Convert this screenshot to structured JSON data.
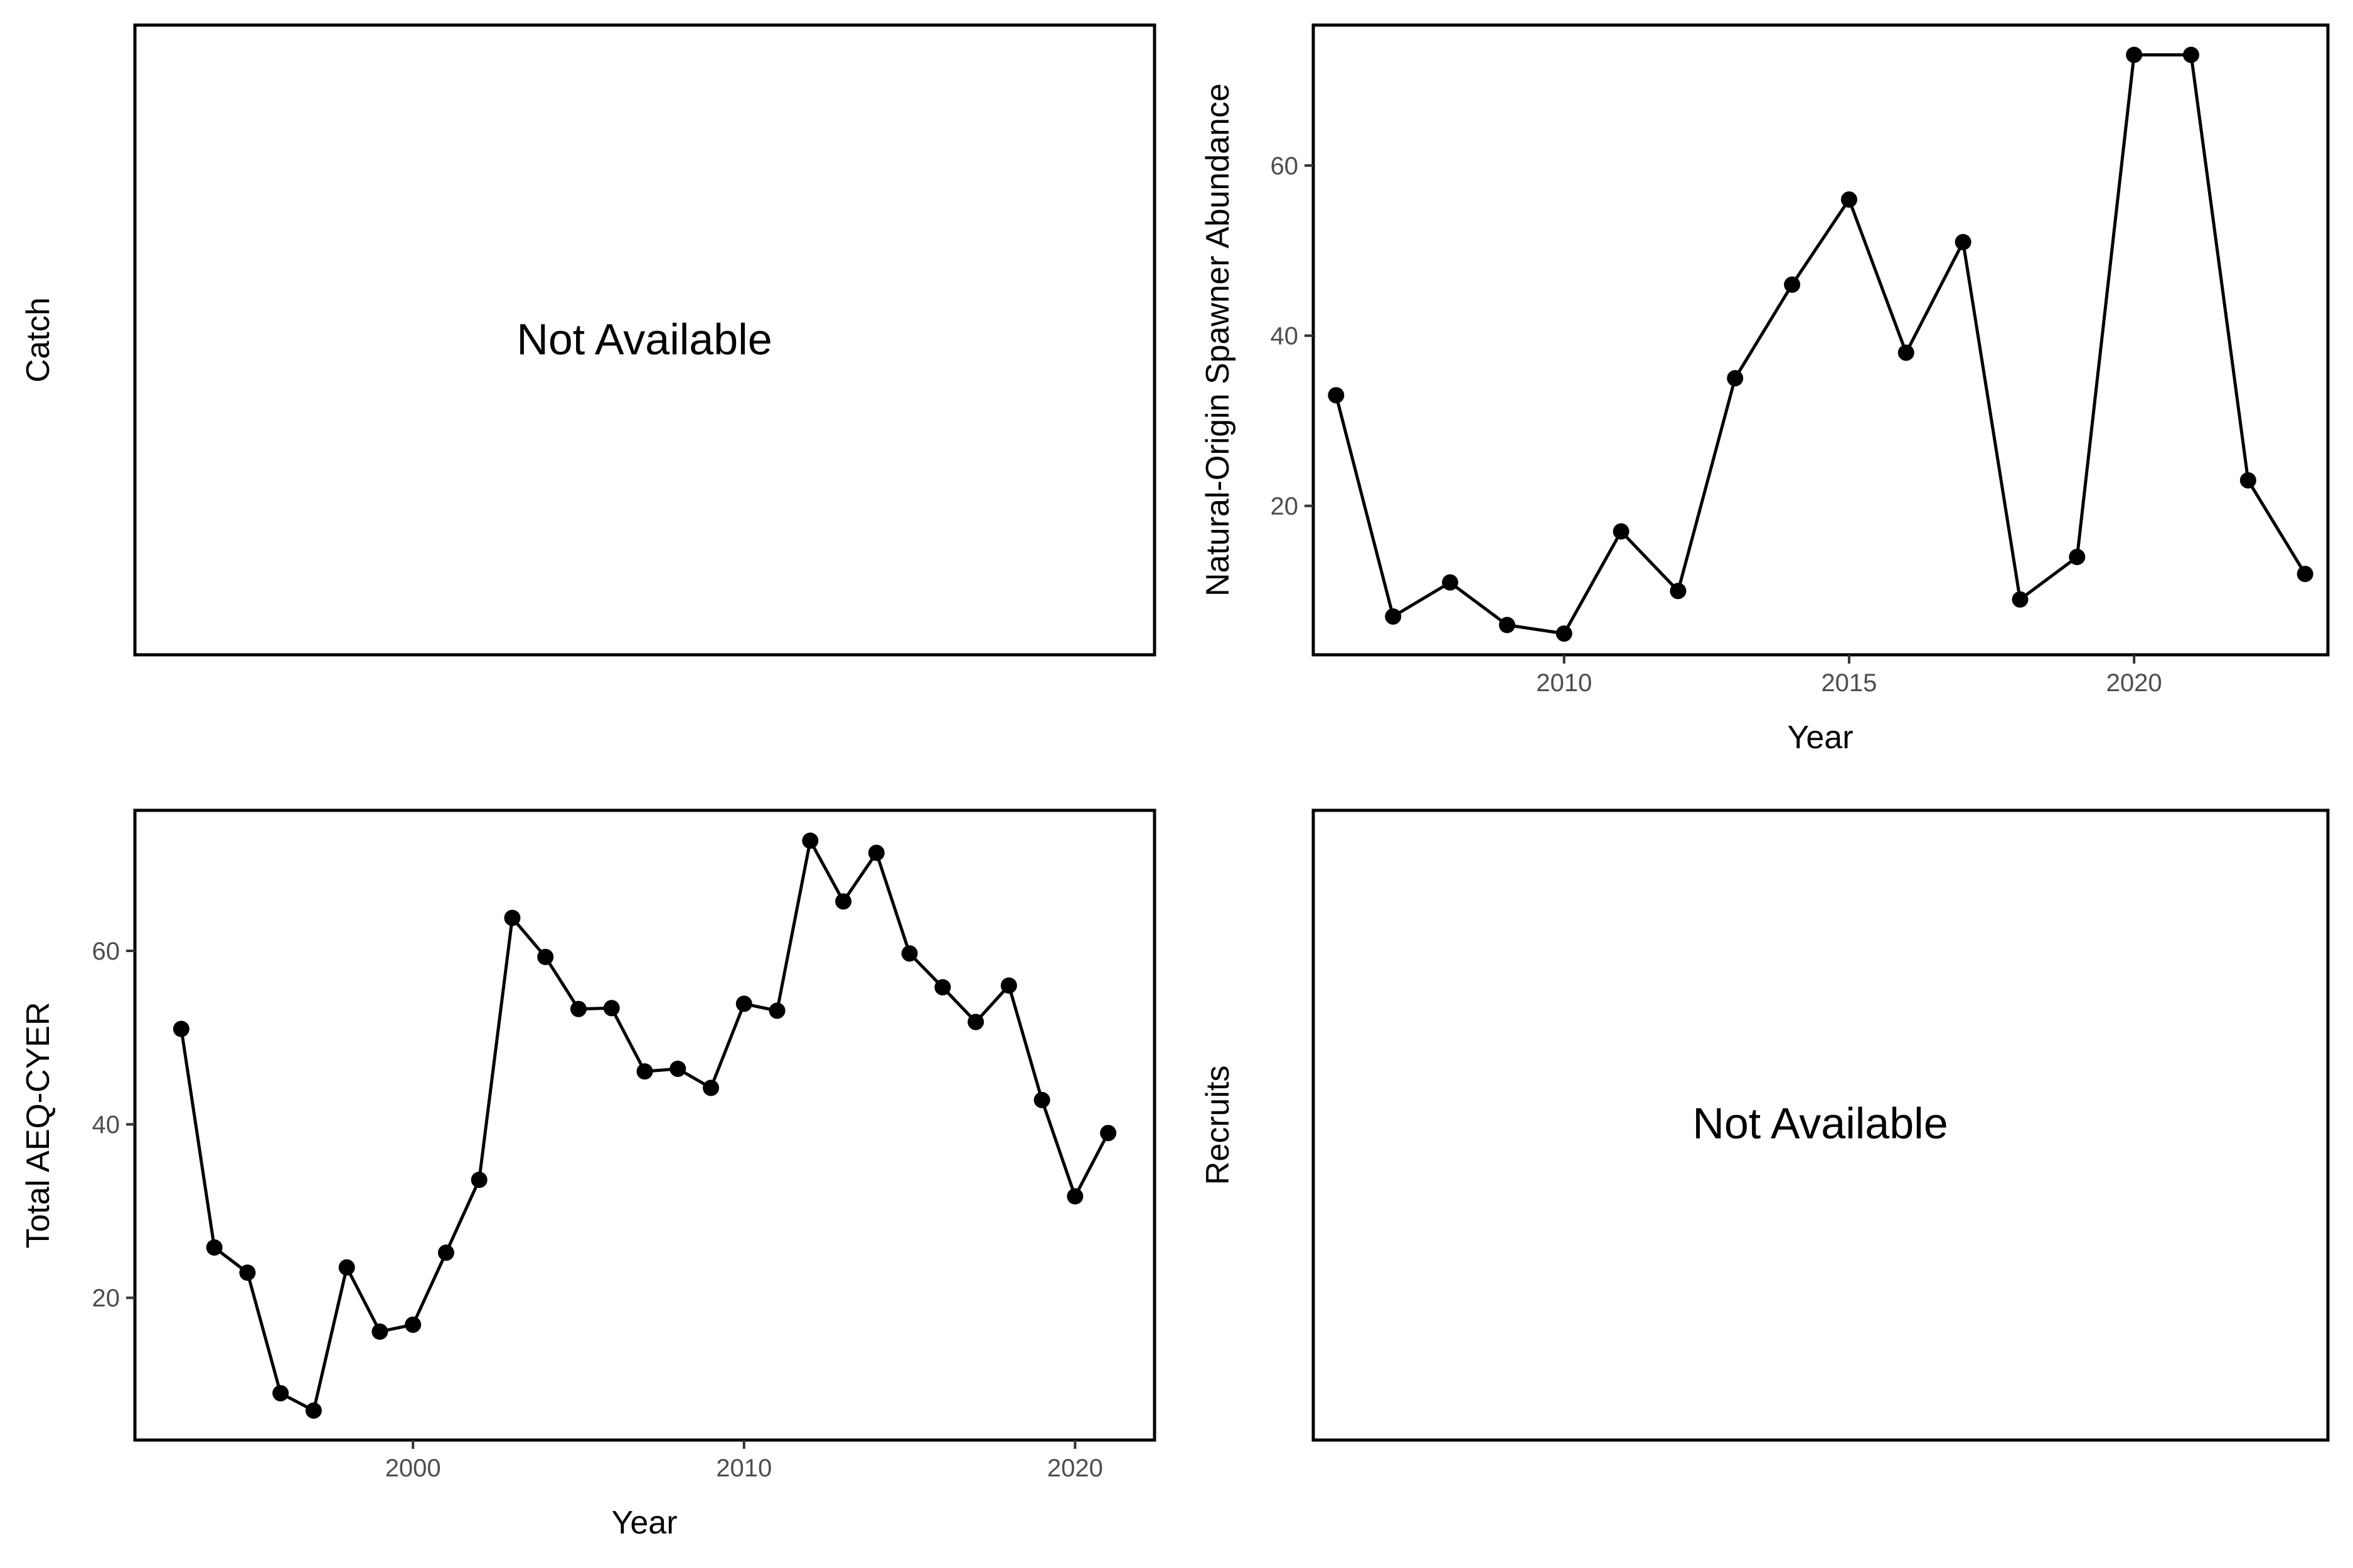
{
  "chart_data": [
    {
      "panel": "catch",
      "type": "line",
      "ylabel": "Catch",
      "message": "Not Available"
    },
    {
      "panel": "spawners",
      "type": "line",
      "xlabel": "Year",
      "ylabel": "Natural-Origin Spawner Abundance",
      "xlim": [
        2005.6,
        2023.4
      ],
      "ylim": [
        2.5,
        76.5
      ],
      "x_ticks": [
        2010,
        2015,
        2020
      ],
      "y_ticks": [
        20,
        40,
        60
      ],
      "series": [
        {
          "x": [
            2006,
            2007,
            2008,
            2009,
            2010,
            2011,
            2012,
            2013,
            2014,
            2015,
            2016,
            2017,
            2018,
            2019,
            2020,
            2021,
            2022,
            2023
          ],
          "y": [
            33,
            7,
            11,
            6,
            5,
            17,
            10,
            35,
            46,
            56,
            38,
            51,
            9,
            14,
            73,
            73,
            23,
            12
          ]
        }
      ]
    },
    {
      "panel": "cyer",
      "type": "line",
      "xlabel": "Year",
      "ylabel": "Total AEQ-CYER",
      "xlim": [
        1991.6,
        2022.4
      ],
      "ylim": [
        3.6,
        76.2
      ],
      "x_ticks": [
        2000,
        2010,
        2020
      ],
      "y_ticks": [
        20,
        40,
        60
      ],
      "series": [
        {
          "x": [
            1993,
            1994,
            1995,
            1996,
            1997,
            1998,
            1999,
            2000,
            2001,
            2002,
            2003,
            2004,
            2005,
            2006,
            2007,
            2008,
            2009,
            2010,
            2011,
            2012,
            2013,
            2014,
            2015,
            2016,
            2017,
            2018,
            2019,
            2020,
            2021
          ],
          "y": [
            51,
            25.8,
            22.9,
            9,
            7,
            23.5,
            16.1,
            16.9,
            25.2,
            33.6,
            63.8,
            59.3,
            53.3,
            53.4,
            46.1,
            46.4,
            44.2,
            53.9,
            53.1,
            72.7,
            65.7,
            71.3,
            59.7,
            55.8,
            51.8,
            56,
            42.8,
            31.7,
            39
          ]
        }
      ]
    },
    {
      "panel": "recruits",
      "type": "line",
      "ylabel": "Recruits",
      "message": "Not Available"
    }
  ]
}
